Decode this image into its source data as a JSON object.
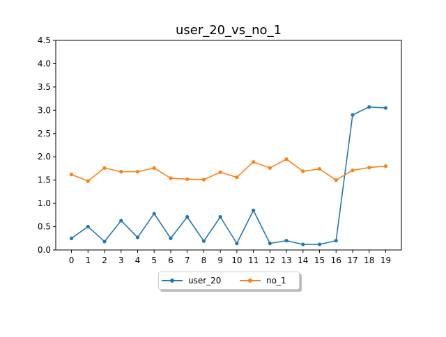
{
  "chart_data": {
    "type": "line",
    "title": "user_20_vs_no_1",
    "xlabel": "",
    "ylabel": "",
    "x": [
      0,
      1,
      2,
      3,
      4,
      5,
      6,
      7,
      8,
      9,
      10,
      11,
      12,
      13,
      14,
      15,
      16,
      17,
      18,
      19
    ],
    "xticks": [
      "0",
      "1",
      "2",
      "3",
      "4",
      "5",
      "6",
      "7",
      "8",
      "9",
      "10",
      "11",
      "12",
      "13",
      "14",
      "15",
      "16",
      "17",
      "18",
      "19"
    ],
    "ylim": [
      0,
      4.5
    ],
    "yticks": [
      "0.0",
      "0.5",
      "1.0",
      "1.5",
      "2.0",
      "2.5",
      "3.0",
      "3.5",
      "4.0",
      "4.5"
    ],
    "grid": false,
    "legend_position": "bottom-center",
    "series": [
      {
        "name": "user_20",
        "color": "#1f77b4",
        "values": [
          0.25,
          0.5,
          0.18,
          0.63,
          0.27,
          0.78,
          0.25,
          0.71,
          0.19,
          0.71,
          0.14,
          0.85,
          0.14,
          0.2,
          0.12,
          0.12,
          0.2,
          2.9,
          3.07,
          3.05
        ]
      },
      {
        "name": "no_1",
        "color": "#ff7f0e",
        "values": [
          1.62,
          1.48,
          1.76,
          1.68,
          1.68,
          1.76,
          1.54,
          1.52,
          1.51,
          1.67,
          1.56,
          1.89,
          1.76,
          1.95,
          1.69,
          1.74,
          1.5,
          1.71,
          1.77,
          1.8
        ]
      }
    ]
  }
}
